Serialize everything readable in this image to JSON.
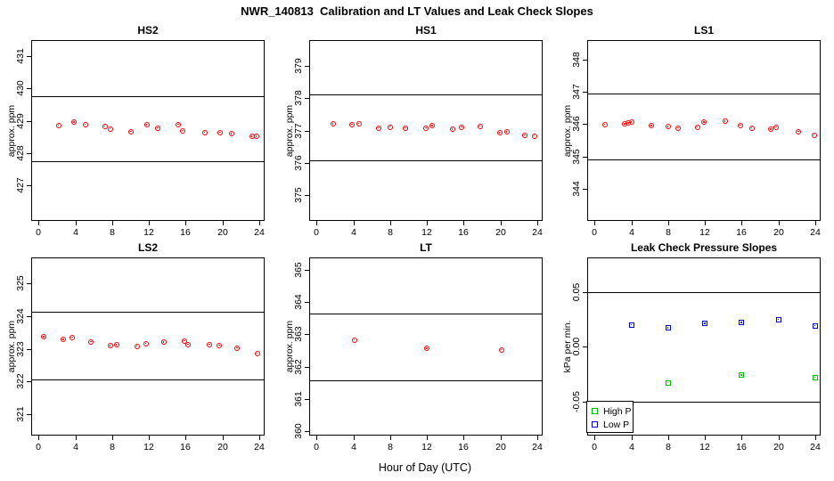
{
  "title": "NWR_140813  Calibration and LT Values and Leak Check Slopes",
  "x_axis_title": "Hour of Day (UTC)",
  "chart_data": {
    "type": "scatter",
    "layout": "2-rows-x-3-cols small multiples, full box frame, outward ticks, rotated y tick labels",
    "shared_xlabel": "Hour of Day (UTC)",
    "panels": [
      {
        "title": "HS2",
        "ylabel": "approx. ppm",
        "xlim": [
          -0.8,
          24.6
        ],
        "xticks": [
          0,
          4,
          8,
          12,
          16,
          20,
          24
        ],
        "ylim": [
          425.9,
          431.5
        ],
        "yticks": [
          427,
          428,
          429,
          430,
          431
        ],
        "ytick_labels": [
          "427",
          "428",
          "429",
          "430",
          "431"
        ],
        "ref_lines": [
          429.76,
          427.76
        ],
        "grid": false,
        "series": [
          {
            "name": "calibration-value",
            "marker": "circle",
            "color": "#ee0000",
            "x": [
              2.2,
              3.9,
              5.1,
              7.2,
              7.8,
              10.1,
              11.8,
              13.0,
              15.2,
              15.7,
              18.1,
              19.8,
              21.0,
              23.2,
              23.7
            ],
            "y": [
              428.86,
              428.95,
              428.88,
              428.83,
              428.75,
              428.67,
              428.87,
              428.78,
              428.89,
              428.7,
              428.64,
              428.64,
              428.59,
              428.51,
              428.52
            ]
          }
        ]
      },
      {
        "title": "HS1",
        "ylabel": "approx. ppm",
        "xlim": [
          -0.8,
          24.6
        ],
        "xticks": [
          0,
          4,
          8,
          12,
          16,
          20,
          24
        ],
        "ylim": [
          374.2,
          379.8
        ],
        "yticks": [
          375,
          376,
          377,
          378,
          379
        ],
        "ytick_labels": [
          "375",
          "376",
          "377",
          "378",
          "379"
        ],
        "ref_lines": [
          378.12,
          376.08
        ],
        "grid": false,
        "series": [
          {
            "name": "calibration-value",
            "marker": "circle",
            "color": "#ee0000",
            "x": [
              1.8,
              3.9,
              4.6,
              6.8,
              8.0,
              9.7,
              11.9,
              12.6,
              14.8,
              15.8,
              17.8,
              19.9,
              20.7,
              22.7,
              23.7
            ],
            "y": [
              377.2,
              377.18,
              377.21,
              377.07,
              377.1,
              377.07,
              377.07,
              377.15,
              377.04,
              377.1,
              377.13,
              376.93,
              376.95,
              376.86,
              376.83
            ]
          }
        ]
      },
      {
        "title": "LS1",
        "ylabel": "approx. ppm",
        "xlim": [
          -0.8,
          24.6
        ],
        "xticks": [
          0,
          4,
          8,
          12,
          16,
          20,
          24
        ],
        "ylim": [
          343.0,
          348.6
        ],
        "yticks": [
          344,
          345,
          346,
          347,
          348
        ],
        "ytick_labels": [
          "344",
          "345",
          "346",
          "347",
          "348"
        ],
        "ref_lines": [
          346.95,
          344.89
        ],
        "grid": false,
        "series": [
          {
            "name": "calibration-value",
            "marker": "circle",
            "color": "#ee0000",
            "x": [
              1.1,
              3.3,
              3.7,
              4.0,
              6.2,
              8.0,
              9.1,
              11.2,
              11.9,
              14.2,
              15.9,
              17.1,
              19.2,
              19.8,
              22.2,
              23.9
            ],
            "y": [
              345.98,
              346.0,
              346.03,
              346.06,
              345.95,
              345.92,
              345.87,
              345.9,
              346.05,
              346.08,
              345.96,
              345.87,
              345.83,
              345.91,
              345.77,
              345.66
            ]
          }
        ]
      },
      {
        "title": "LS2",
        "ylabel": "approx. ppm",
        "xlim": [
          -0.8,
          24.6
        ],
        "xticks": [
          0,
          4,
          8,
          12,
          16,
          20,
          24
        ],
        "ylim": [
          320.35,
          325.8
        ],
        "yticks": [
          321,
          322,
          323,
          324,
          325
        ],
        "ytick_labels": [
          "321",
          "322",
          "323",
          "324",
          "325"
        ],
        "ref_lines": [
          324.13,
          322.07
        ],
        "grid": false,
        "series": [
          {
            "name": "calibration-value",
            "marker": "circle",
            "color": "#ee0000",
            "x": [
              0.6,
              2.7,
              3.7,
              5.7,
              7.8,
              8.5,
              10.7,
              11.7,
              13.6,
              15.9,
              16.3,
              18.6,
              19.7,
              21.6,
              23.8
            ],
            "y": [
              323.37,
              323.28,
              323.36,
              323.22,
              323.09,
              323.12,
              323.08,
              323.17,
              323.2,
              323.25,
              323.13,
              323.13,
              323.11,
              323.03,
              322.87
            ]
          }
        ]
      },
      {
        "title": "LT",
        "ylabel": "approx. ppm",
        "xlim": [
          -0.8,
          24.6
        ],
        "xticks": [
          0,
          4,
          8,
          12,
          16,
          20,
          24
        ],
        "ylim": [
          359.87,
          365.38
        ],
        "yticks": [
          360,
          361,
          362,
          363,
          364,
          365
        ],
        "ytick_labels": [
          "360",
          "361",
          "362",
          "363",
          "364",
          "365"
        ],
        "ref_lines": [
          363.64,
          361.58
        ],
        "grid": false,
        "series": [
          {
            "name": "lt-value",
            "marker": "circle",
            "color": "#ee0000",
            "x": [
              4.1,
              12.0,
              20.1
            ],
            "y": [
              362.83,
              362.56,
              362.52
            ]
          }
        ]
      },
      {
        "title": "Leak Check Pressure Slopes",
        "ylabel": "kPa per min.",
        "xlim": [
          -0.8,
          24.6
        ],
        "xticks": [
          0,
          4,
          8,
          12,
          16,
          20,
          24
        ],
        "ylim": [
          -0.081,
          0.0815
        ],
        "yticks": [
          -0.05,
          0.0,
          0.05
        ],
        "ytick_labels": [
          "-0.05",
          "0.00",
          "0.05"
        ],
        "ref_lines": [
          0.05,
          -0.05
        ],
        "grid": false,
        "series": [
          {
            "name": "High P",
            "marker": "square",
            "color": "#00bb00",
            "x": [
              8,
              16,
              24
            ],
            "y": [
              -0.033,
              -0.026,
              -0.028
            ]
          },
          {
            "name": "Low P",
            "marker": "square",
            "color": "#0000cc",
            "x": [
              4,
              8,
              12,
              16,
              20,
              24
            ],
            "y": [
              0.02,
              0.017,
              0.021,
              0.022,
              0.025,
              0.019
            ]
          }
        ],
        "legend": {
          "position": "bottom-left",
          "items": [
            {
              "label": "High P",
              "color": "#00bb00"
            },
            {
              "label": "Low P",
              "color": "#0000cc"
            }
          ]
        }
      }
    ]
  }
}
